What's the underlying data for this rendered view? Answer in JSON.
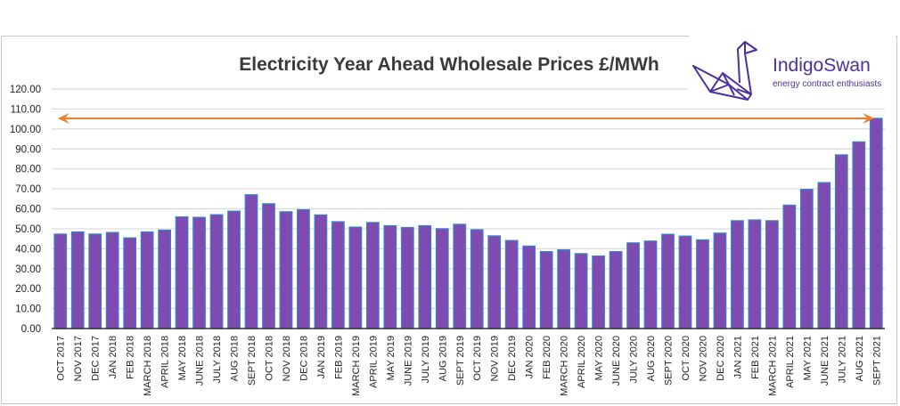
{
  "logo": {
    "name": "IndigoSwan",
    "tagline": "energy contract enthusiasts",
    "icon": "origami-swan-icon",
    "color": "#4b2fa0"
  },
  "chart_data": {
    "type": "bar",
    "title": "Electricity Year Ahead Wholesale Prices £/MWh",
    "xlabel": "",
    "ylabel": "",
    "ylim": [
      0,
      120
    ],
    "yticks": [
      "0.00",
      "10.00",
      "20.00",
      "30.00",
      "40.00",
      "50.00",
      "60.00",
      "70.00",
      "80.00",
      "90.00",
      "100.00",
      "110.00",
      "120.00"
    ],
    "grid": true,
    "legend": "none",
    "bar_color": "#7f4bb0",
    "bar_edge_color": "#3a7fc4",
    "categories": [
      "OCT 2017",
      "NOV 2017",
      "DEC 2017",
      "JAN 2018",
      "FEB 2018",
      "MARCH 2018",
      "APRIL 2018",
      "MAY 2018",
      "JUNE 2018",
      "JULY 2018",
      "AUG 2018",
      "SEPT 2018",
      "OCT 2018",
      "NOV 2018",
      "DEC 2018",
      "JAN 2019",
      "FEB 2019",
      "MARCH 2019",
      "APRIL 2019",
      "MAY 2019",
      "JUNE 2019",
      "JULY 2019",
      "AUG 2019",
      "SEPT 2019",
      "OCT 2019",
      "NOV 2019",
      "DEC 2019",
      "JAN 2020",
      "FEB 2020",
      "MARCH 2020",
      "APRIL 2020",
      "MAY 2020",
      "JUNE 2020",
      "JULY 2020",
      "AUG 2020",
      "SEPT 2020",
      "OCT 2020",
      "NOV 2020",
      "DEC 2020",
      "JAN 2021",
      "FEB 2021",
      "MARCH 2021",
      "APRIL 2021",
      "MAY 2021",
      "JUNE 2021",
      "JULY 2021",
      "AUG 2021",
      "SEPT 2021"
    ],
    "values": [
      47.3,
      48.4,
      47.3,
      48.1,
      45.4,
      48.4,
      49.3,
      55.9,
      55.7,
      57.0,
      58.8,
      67.0,
      62.5,
      58.5,
      59.5,
      56.9,
      53.5,
      50.8,
      53.1,
      51.5,
      50.6,
      51.5,
      50.0,
      52.2,
      49.5,
      46.4,
      44.1,
      41.3,
      38.5,
      39.4,
      37.5,
      36.3,
      38.5,
      42.9,
      43.8,
      47.2,
      46.3,
      44.4,
      47.8,
      54.0,
      54.4,
      54.0,
      61.8,
      69.7,
      73.1,
      87.0,
      93.5,
      105.3
    ],
    "annotations": [
      {
        "type": "double-arrow",
        "color": "#ed7d31",
        "y": 105.3,
        "from": "OCT 2017",
        "to": "SEPT 2021"
      }
    ]
  }
}
